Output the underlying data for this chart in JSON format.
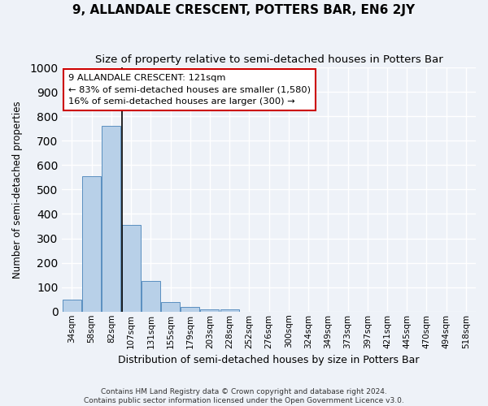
{
  "title": "9, ALLANDALE CRESCENT, POTTERS BAR, EN6 2JY",
  "subtitle": "Size of property relative to semi-detached houses in Potters Bar",
  "xlabel": "Distribution of semi-detached houses by size in Potters Bar",
  "ylabel": "Number of semi-detached properties",
  "footnote1": "Contains HM Land Registry data © Crown copyright and database right 2024.",
  "footnote2": "Contains public sector information licensed under the Open Government Licence v3.0.",
  "categories": [
    "34sqm",
    "58sqm",
    "82sqm",
    "107sqm",
    "131sqm",
    "155sqm",
    "179sqm",
    "203sqm",
    "228sqm",
    "252sqm",
    "276sqm",
    "300sqm",
    "324sqm",
    "349sqm",
    "373sqm",
    "397sqm",
    "421sqm",
    "445sqm",
    "470sqm",
    "494sqm",
    "518sqm"
  ],
  "values": [
    50,
    555,
    760,
    355,
    127,
    40,
    18,
    10,
    10,
    0,
    0,
    0,
    0,
    0,
    0,
    0,
    0,
    0,
    0,
    0,
    0
  ],
  "bar_color": "#b8d0e8",
  "bar_edge_color": "#5a8fc0",
  "annotation_text1": "9 ALLANDALE CRESCENT: 121sqm",
  "annotation_text2": "← 83% of semi-detached houses are smaller (1,580)",
  "annotation_text3": "16% of semi-detached houses are larger (300) →",
  "annotation_box_color": "#ffffff",
  "annotation_box_edge": "#cc0000",
  "ylim": [
    0,
    1000
  ],
  "yticks": [
    0,
    100,
    200,
    300,
    400,
    500,
    600,
    700,
    800,
    900,
    1000
  ],
  "bg_color": "#eef2f8",
  "grid_color": "#ffffff",
  "title_fontsize": 11,
  "subtitle_fontsize": 9.5
}
